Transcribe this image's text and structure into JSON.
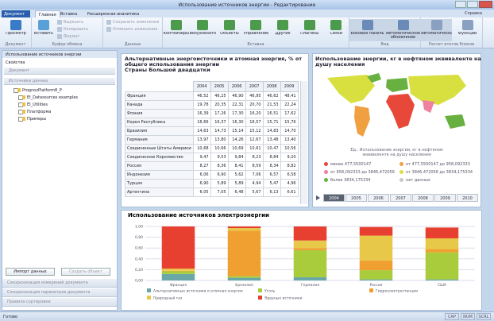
{
  "window": {
    "title": "Использование источников энергии - Редактирование",
    "help": "Справка"
  },
  "ribbon": {
    "menu": "Документ",
    "tabs": [
      "Главная",
      "Вставка",
      "Расширенная аналитика"
    ],
    "groups": [
      {
        "label": "Документ",
        "buttons": [
          "Просмотр"
        ]
      },
      {
        "label": "Буфер обмена",
        "buttons": [
          "Вставить",
          "Вырезать",
          "Копировать",
          "Формат"
        ]
      },
      {
        "label": "Данные",
        "buttons": [
          "Сохранить изменения",
          "Отменить изменения"
        ]
      },
      {
        "label": "Вставка",
        "buttons": [
          "Контейнеры",
          "Визуализаторы",
          "Объекты",
          "Управление",
          "Другие",
          "Плагины",
          "Связи"
        ]
      },
      {
        "label": "Вид",
        "buttons": [
          "Боковая панель",
          "Автоматическое обновление"
        ]
      },
      {
        "label": "Расчет итогов блоков",
        "buttons": [
          "Автоматически",
          "Функции"
        ]
      }
    ]
  },
  "left_panel": {
    "tab": "Использование источников энергии",
    "properties": "Свойства",
    "sections": [
      "Документ",
      "Источники данных"
    ],
    "tree": [
      "PrognozPlatform8_P",
      "EI_Datasources examples",
      "EI_Utilities",
      "Платформа",
      "Примеры"
    ],
    "buttons": [
      "Импорт данных",
      "Создать объект"
    ],
    "bottom": [
      "Синхронизация измерений документа",
      "Синхронизация параметров документа",
      "Правила сортировки"
    ]
  },
  "table": {
    "title": [
      "Альтернативные энергоисточники и атомная энергия, % от",
      "общего использования энергии",
      "Страны Большой двадцатки"
    ],
    "columns": [
      "2004",
      "2005",
      "2006",
      "2007",
      "2008",
      "2009"
    ],
    "rows": [
      [
        "Франция",
        "46,52",
        "46,25",
        "46,90",
        "46,95",
        "46,62",
        "48,41"
      ],
      [
        "Канада",
        "19,78",
        "20,35",
        "22,31",
        "20,70",
        "21,53",
        "22,24"
      ],
      [
        "Япония",
        "16,39",
        "17,26",
        "17,30",
        "16,20",
        "16,51",
        "17,62"
      ],
      [
        "Корея Республика",
        "16,66",
        "16,37",
        "16,30",
        "16,57",
        "15,71",
        "15,76"
      ],
      [
        "Бразилия",
        "14,63",
        "14,73",
        "15,14",
        "15,12",
        "14,83",
        "14,70"
      ],
      [
        "Германия",
        "13,97",
        "13,80",
        "14,26",
        "12,67",
        "13,48",
        "13,40"
      ],
      [
        "Соединенные Штаты Америки",
        "10,68",
        "10,66",
        "10,69",
        "10,61",
        "10,47",
        "10,56"
      ],
      [
        "Соединенное Королевство",
        "9,47",
        "9,53",
        "9,84",
        "8,23",
        "8,84",
        "9,20"
      ],
      [
        "Россия",
        "8,27",
        "8,36",
        "8,41",
        "8,59",
        "8,34",
        "8,82"
      ],
      [
        "Индонезия",
        "6,06",
        "6,90",
        "5,62",
        "7,06",
        "6,57",
        "6,58"
      ],
      [
        "Турция",
        "6,90",
        "5,89",
        "5,89",
        "4,94",
        "5,47",
        "4,96"
      ],
      [
        "Аргентина",
        "6,05",
        "7,05",
        "6,48",
        "5,67",
        "6,13",
        "6,61"
      ]
    ]
  },
  "map": {
    "title": [
      "Использование энергии, кг в нефтяном эквиваленте на",
      "душу населения"
    ],
    "unit": "Ед.: Использование энергии, кг в нефтяном эквиваленте на душу населения",
    "legend": [
      {
        "label": "менее 477,5500147",
        "color": "#e8483a"
      },
      {
        "label": "от 477,5500147 до 958,092333",
        "color": "#f0a040"
      },
      {
        "label": "от 958,092333 до 3846,472056",
        "color": "#f080a0"
      },
      {
        "label": "от 3846,472056 до 3834,175334",
        "color": "#d8e040"
      },
      {
        "label": "более 3834,175334",
        "color": "#68b040"
      },
      {
        "label": "нет данных",
        "color": "#c8c8c8"
      }
    ],
    "years": [
      "2004",
      "2005",
      "2006",
      "2007",
      "2008",
      "2009",
      "2010"
    ]
  },
  "chart_data": {
    "type": "stacked_bar",
    "title": "Использование источников электроэнергии",
    "categories": [
      "Франция",
      "Бразилия",
      "Германия",
      "Россия",
      "США"
    ],
    "series": [
      {
        "name": "Альтернативные источники и атомная энергия",
        "color": "#6aa8a8",
        "values": [
          0.12,
          0.05,
          0.06,
          0.02,
          0.02
        ]
      },
      {
        "name": "Уголь",
        "color": "#a8cc3c",
        "values": [
          0.05,
          0.03,
          0.5,
          0.17,
          0.5
        ]
      },
      {
        "name": "Гидроэлектростанции",
        "color": "#f0a030",
        "values": [
          0.01,
          0.84,
          0.04,
          0.18,
          0.06
        ]
      },
      {
        "name": "Природный газ",
        "color": "#e8c848",
        "values": [
          0.04,
          0.05,
          0.14,
          0.46,
          0.2
        ]
      },
      {
        "name": "Ядерные источники",
        "color": "#e84030",
        "values": [
          0.78,
          0.03,
          0.26,
          0.16,
          0.2
        ]
      }
    ],
    "ylim": [
      0,
      1
    ],
    "yticks": [
      {
        "value": 0,
        "label": "0,00"
      },
      {
        "value": 0.2,
        "label": "0,20"
      },
      {
        "value": 0.4,
        "label": "0,40"
      },
      {
        "value": 0.6,
        "label": "0,60"
      },
      {
        "value": 0.8,
        "label": "0,80"
      },
      {
        "value": 1,
        "label": "1,00"
      }
    ],
    "grid": true
  },
  "status": {
    "left": "Готово",
    "indicators": [
      "CAP",
      "NUM",
      "SCRL"
    ]
  }
}
